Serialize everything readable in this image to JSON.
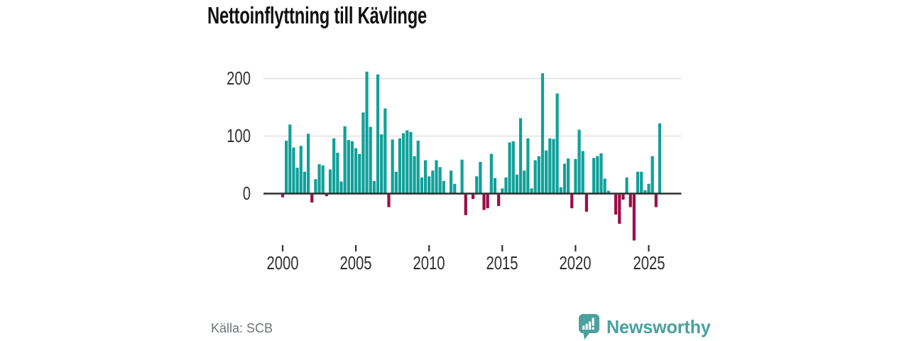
{
  "title": "Nettoinflyttning till Kävlinge",
  "source_label": "Källa: SCB",
  "logo": {
    "wordmark": "Newsworthy",
    "icon": "newsworthy-bubble-barchart-icon"
  },
  "colors": {
    "positive": "#11a09a",
    "negative": "#9e0c48",
    "axis": "#2d2d2d",
    "grid": "#dcdcdc",
    "tick": "#333333",
    "text": "#333333",
    "muted_text": "#6d7278",
    "logo_teal": "#4ba19e",
    "title_text": "#111111"
  },
  "chart_data": {
    "type": "bar",
    "title": "Nettoinflyttning till Kävlinge",
    "xlabel": "",
    "ylabel": "",
    "frequency": "quarterly",
    "x_tick_labels": [
      "2000",
      "2005",
      "2010",
      "2015",
      "2020",
      "2025"
    ],
    "y_tick_labels": [
      "0",
      "100",
      "200"
    ],
    "y_gridlines": [
      100,
      200
    ],
    "ylim": [
      -90,
      225
    ],
    "legend": "none",
    "series": [
      {
        "year": 2000,
        "quarters": [
          -5,
          92,
          120,
          80
        ]
      },
      {
        "year": 2001,
        "quarters": [
          45,
          83,
          38,
          104
        ]
      },
      {
        "year": 2002,
        "quarters": [
          -14,
          25,
          51,
          49
        ]
      },
      {
        "year": 2003,
        "quarters": [
          -3,
          42,
          96,
          71
        ]
      },
      {
        "year": 2004,
        "quarters": [
          21,
          117,
          93,
          91
        ]
      },
      {
        "year": 2005,
        "quarters": [
          79,
          69,
          141,
          212
        ]
      },
      {
        "year": 2006,
        "quarters": [
          116,
          22,
          207,
          103
        ]
      },
      {
        "year": 2007,
        "quarters": [
          148,
          -22,
          94,
          38
        ]
      },
      {
        "year": 2008,
        "quarters": [
          96,
          105,
          110,
          107
        ]
      },
      {
        "year": 2009,
        "quarters": [
          65,
          92,
          28,
          58
        ]
      },
      {
        "year": 2010,
        "quarters": [
          30,
          40,
          58,
          46
        ]
      },
      {
        "year": 2011,
        "quarters": [
          22,
          0,
          40,
          17
        ]
      },
      {
        "year": 2012,
        "quarters": [
          0,
          59,
          -36,
          0
        ]
      },
      {
        "year": 2013,
        "quarters": [
          -8,
          30,
          55,
          -27
        ]
      },
      {
        "year": 2014,
        "quarters": [
          -24,
          69,
          27,
          -20
        ]
      },
      {
        "year": 2015,
        "quarters": [
          9,
          28,
          89,
          91
        ]
      },
      {
        "year": 2016,
        "quarters": [
          33,
          131,
          40,
          96
        ]
      },
      {
        "year": 2017,
        "quarters": [
          9,
          58,
          65,
          209
        ]
      },
      {
        "year": 2018,
        "quarters": [
          75,
          96,
          95,
          174
        ]
      },
      {
        "year": 2019,
        "quarters": [
          11,
          52,
          61,
          -24
        ]
      },
      {
        "year": 2020,
        "quarters": [
          60,
          111,
          74,
          -30
        ]
      },
      {
        "year": 2021,
        "quarters": [
          0,
          62,
          65,
          70
        ]
      },
      {
        "year": 2022,
        "quarters": [
          26,
          5,
          0,
          -35
        ]
      },
      {
        "year": 2023,
        "quarters": [
          -51,
          -9,
          28,
          -22
        ]
      },
      {
        "year": 2024,
        "quarters": [
          -80,
          38,
          38,
          6
        ]
      },
      {
        "year": 2025,
        "quarters": [
          17,
          65,
          -22,
          122
        ]
      }
    ]
  }
}
